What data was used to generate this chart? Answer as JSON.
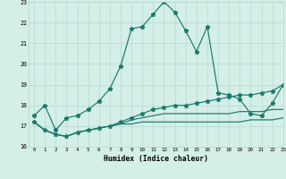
{
  "x": [
    0,
    1,
    2,
    3,
    4,
    5,
    6,
    7,
    8,
    9,
    10,
    11,
    12,
    13,
    14,
    15,
    16,
    17,
    18,
    19,
    20,
    21,
    22,
    23
  ],
  "line_main": [
    17.5,
    18.0,
    16.8,
    17.4,
    17.5,
    17.8,
    18.2,
    18.8,
    19.9,
    21.7,
    21.8,
    22.4,
    23.0,
    22.5,
    21.6,
    20.6,
    21.8,
    18.6,
    18.5,
    18.3,
    17.6,
    17.5,
    18.1,
    19.0
  ],
  "line_flat1": [
    17.2,
    16.8,
    16.6,
    16.5,
    16.7,
    16.8,
    16.9,
    17.0,
    17.1,
    17.1,
    17.2,
    17.2,
    17.2,
    17.2,
    17.2,
    17.2,
    17.2,
    17.2,
    17.2,
    17.2,
    17.3,
    17.3,
    17.3,
    17.4
  ],
  "line_flat2": [
    17.2,
    16.8,
    16.6,
    16.5,
    16.7,
    16.8,
    16.9,
    17.0,
    17.1,
    17.3,
    17.4,
    17.5,
    17.6,
    17.6,
    17.6,
    17.6,
    17.6,
    17.6,
    17.6,
    17.7,
    17.7,
    17.7,
    17.8,
    17.8
  ],
  "line_marked": [
    17.2,
    16.8,
    16.6,
    16.5,
    16.7,
    16.8,
    16.9,
    17.0,
    17.2,
    17.4,
    17.6,
    17.8,
    17.9,
    18.0,
    18.0,
    18.1,
    18.2,
    18.3,
    18.4,
    18.5,
    18.5,
    18.6,
    18.7,
    19.0
  ],
  "line_color": "#1a7a6a",
  "bg_color": "#d4eee8",
  "grid_color": "#b8d8d2",
  "xlabel": "Humidex (Indice chaleur)",
  "ylim": [
    16,
    23
  ],
  "xlim": [
    -0.5,
    23
  ],
  "yticks": [
    16,
    17,
    18,
    19,
    20,
    21,
    22,
    23
  ],
  "xticks": [
    0,
    1,
    2,
    3,
    4,
    5,
    6,
    7,
    8,
    9,
    10,
    11,
    12,
    13,
    14,
    15,
    16,
    17,
    18,
    19,
    20,
    21,
    22,
    23
  ],
  "marker": "*",
  "markersize": 3.5,
  "lw": 0.85
}
